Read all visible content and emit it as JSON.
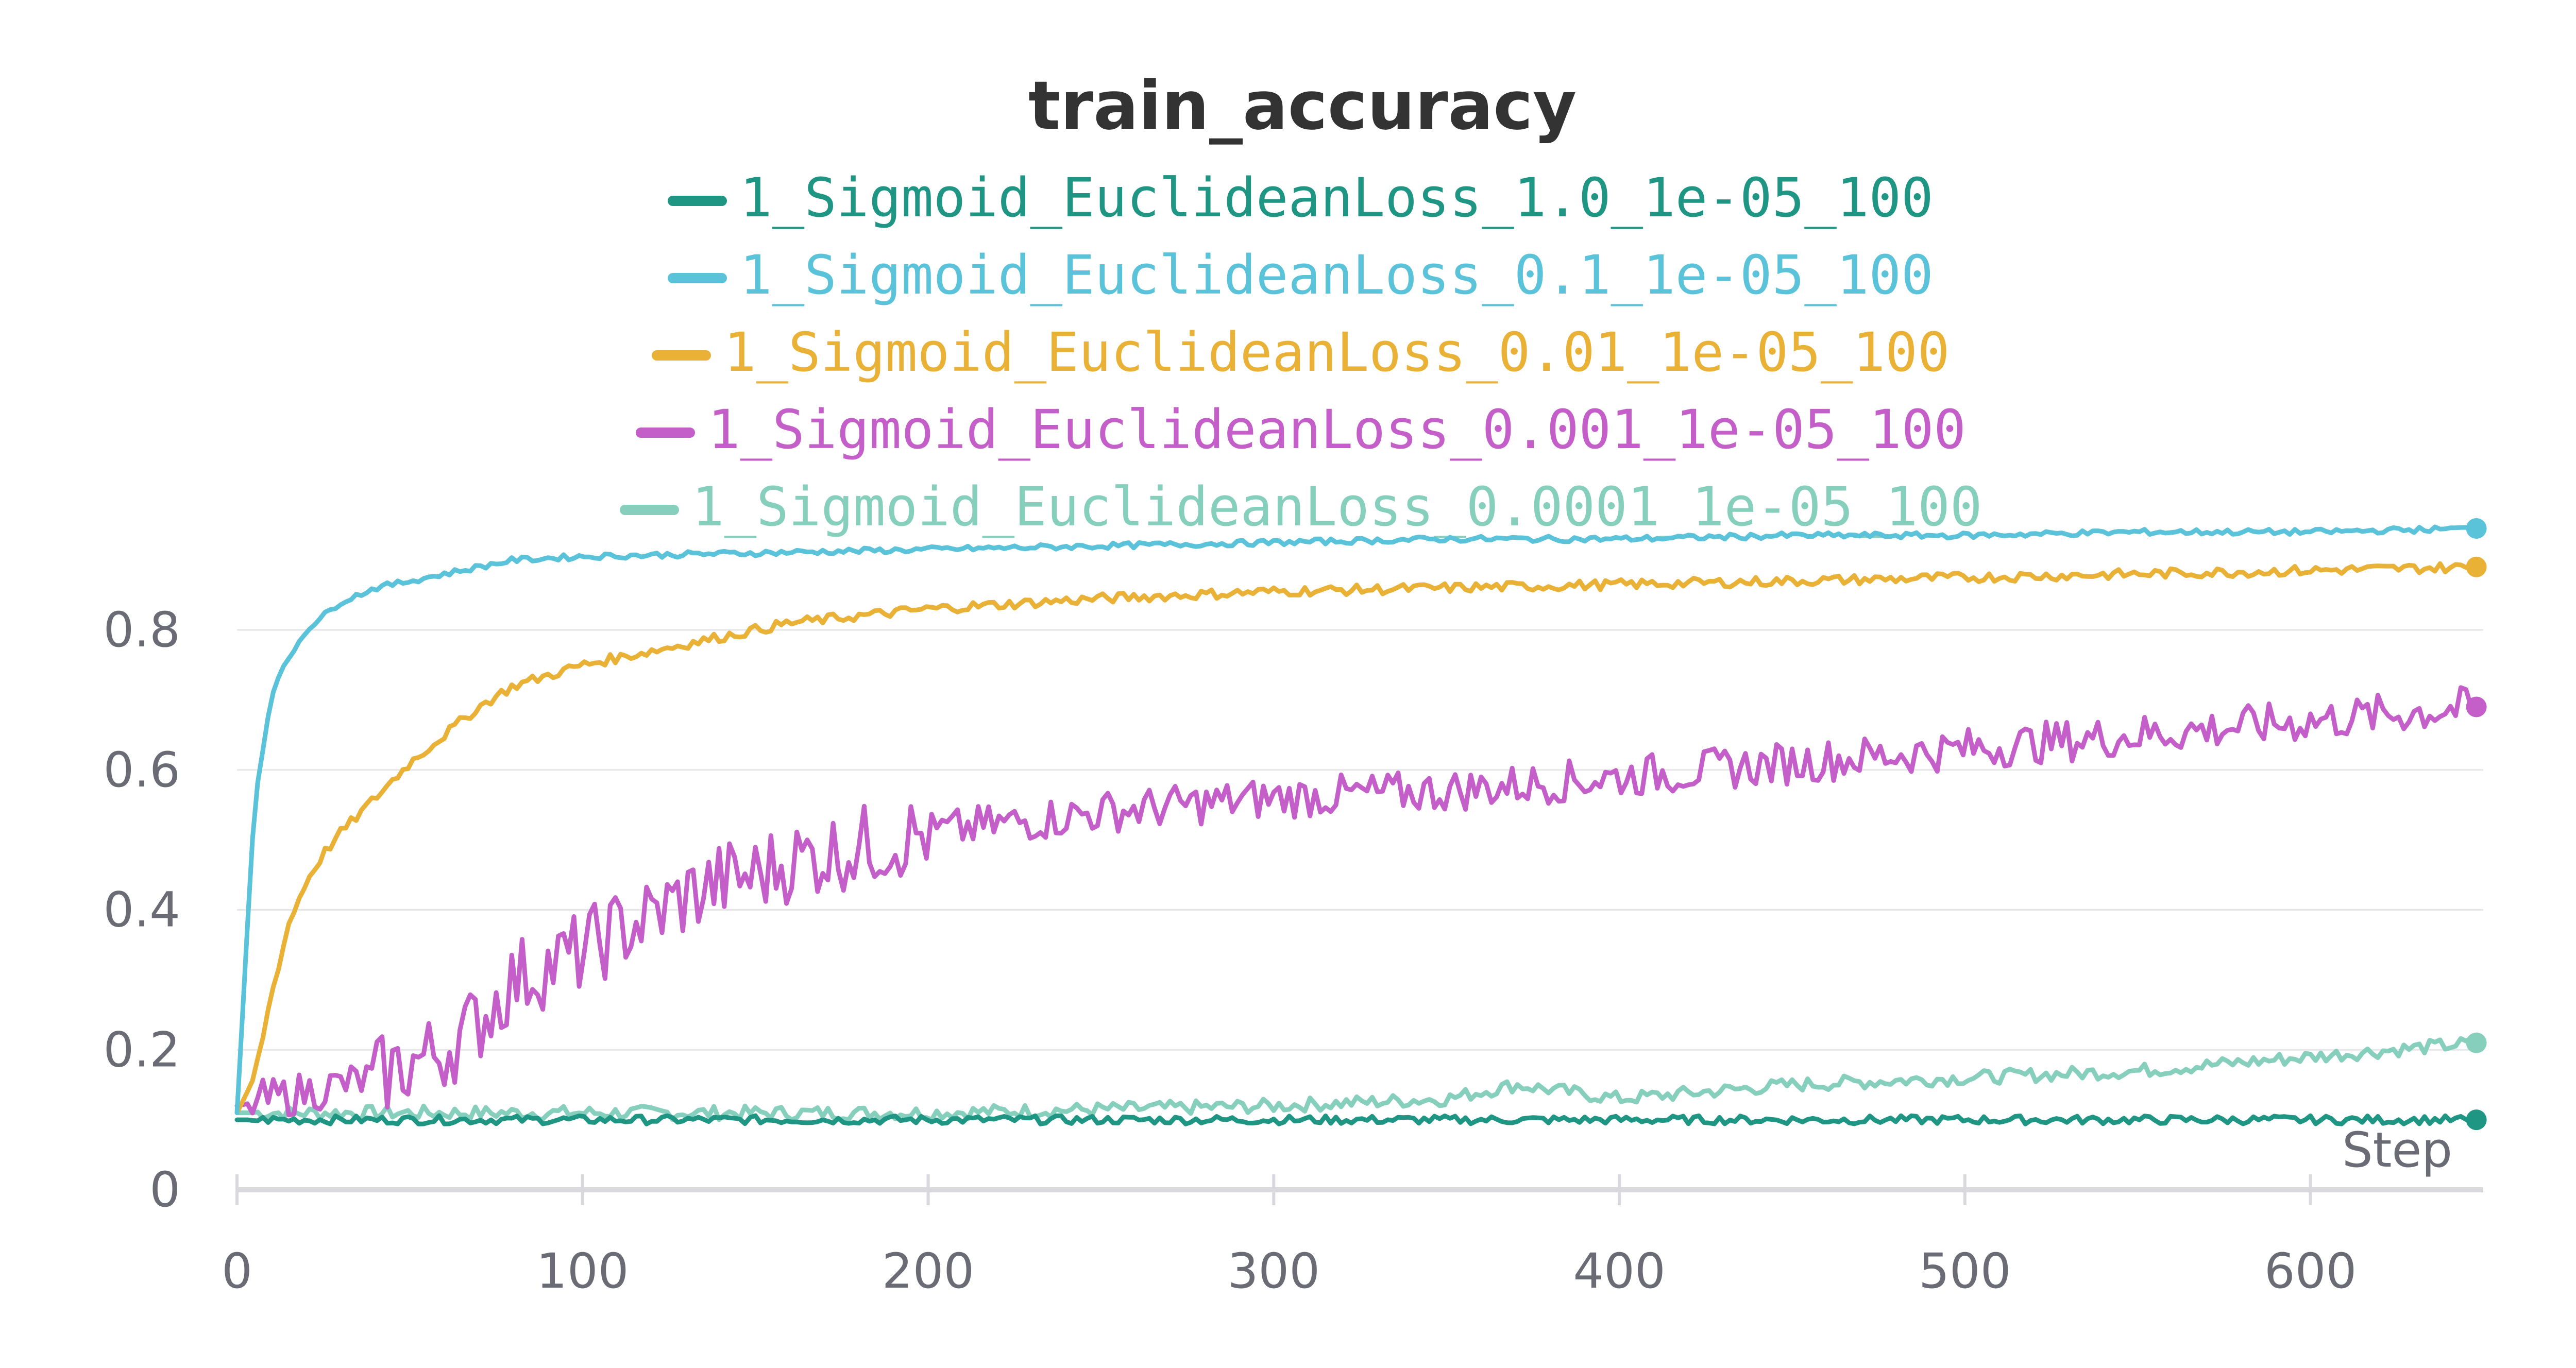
{
  "chart_data": {
    "type": "line",
    "title": "train_accuracy",
    "xlabel": "Step",
    "ylabel": "",
    "xlim": [
      0,
      650
    ],
    "ylim": [
      0,
      0.92
    ],
    "x_ticks": [
      0,
      100,
      200,
      300,
      400,
      500,
      600
    ],
    "y_ticks": [
      0,
      0.2,
      0.4,
      0.6,
      0.8
    ],
    "grid": true,
    "legend_position": "top-center",
    "series": [
      {
        "name": "1_Sigmoid_EuclideanLoss_1.0_1e-05_100",
        "color": "#1f9583",
        "x": [
          0,
          50,
          100,
          150,
          200,
          250,
          300,
          350,
          400,
          450,
          500,
          550,
          600,
          648
        ],
        "values": [
          0.1,
          0.1,
          0.1,
          0.1,
          0.1,
          0.1,
          0.1,
          0.1,
          0.1,
          0.1,
          0.1,
          0.1,
          0.1,
          0.1
        ]
      },
      {
        "name": "1_Sigmoid_EuclideanLoss_0.1_1e-05_100",
        "color": "#5ac2d9",
        "x": [
          0,
          5,
          10,
          15,
          20,
          25,
          30,
          40,
          50,
          60,
          70,
          80,
          100,
          150,
          200,
          250,
          300,
          350,
          400,
          450,
          500,
          550,
          600,
          648
        ],
        "values": [
          0.11,
          0.55,
          0.71,
          0.76,
          0.8,
          0.82,
          0.84,
          0.86,
          0.87,
          0.88,
          0.89,
          0.9,
          0.905,
          0.91,
          0.915,
          0.92,
          0.925,
          0.93,
          0.93,
          0.935,
          0.935,
          0.94,
          0.94,
          0.945
        ]
      },
      {
        "name": "1_Sigmoid_EuclideanLoss_0.01_1e-05_100",
        "color": "#e9b236",
        "x": [
          0,
          5,
          10,
          15,
          20,
          25,
          30,
          40,
          50,
          60,
          70,
          80,
          100,
          120,
          140,
          160,
          180,
          200,
          250,
          300,
          350,
          400,
          450,
          500,
          550,
          600,
          648
        ],
        "values": [
          0.11,
          0.16,
          0.28,
          0.38,
          0.44,
          0.48,
          0.51,
          0.56,
          0.61,
          0.65,
          0.69,
          0.72,
          0.75,
          0.77,
          0.79,
          0.81,
          0.82,
          0.83,
          0.845,
          0.855,
          0.86,
          0.865,
          0.87,
          0.875,
          0.88,
          0.885,
          0.89
        ]
      },
      {
        "name": "1_Sigmoid_EuclideanLoss_0.001_1e-05_100",
        "color": "#c45ec8",
        "x": [
          0,
          10,
          20,
          30,
          40,
          50,
          60,
          70,
          80,
          90,
          100,
          110,
          120,
          130,
          140,
          150,
          160,
          180,
          200,
          250,
          300,
          350,
          400,
          450,
          500,
          550,
          600,
          648
        ],
        "values": [
          0.12,
          0.13,
          0.14,
          0.15,
          0.16,
          0.18,
          0.2,
          0.24,
          0.3,
          0.32,
          0.34,
          0.37,
          0.39,
          0.42,
          0.44,
          0.45,
          0.47,
          0.49,
          0.51,
          0.54,
          0.56,
          0.57,
          0.59,
          0.61,
          0.63,
          0.65,
          0.67,
          0.69
        ]
      },
      {
        "name": "1_Sigmoid_EuclideanLoss_0.0001_1e-05_100",
        "color": "#86cfbd",
        "x": [
          0,
          50,
          100,
          150,
          200,
          250,
          300,
          350,
          370,
          400,
          450,
          500,
          550,
          600,
          648
        ],
        "values": [
          0.11,
          0.11,
          0.11,
          0.11,
          0.11,
          0.115,
          0.12,
          0.13,
          0.15,
          0.13,
          0.15,
          0.16,
          0.17,
          0.19,
          0.21
        ]
      }
    ]
  }
}
